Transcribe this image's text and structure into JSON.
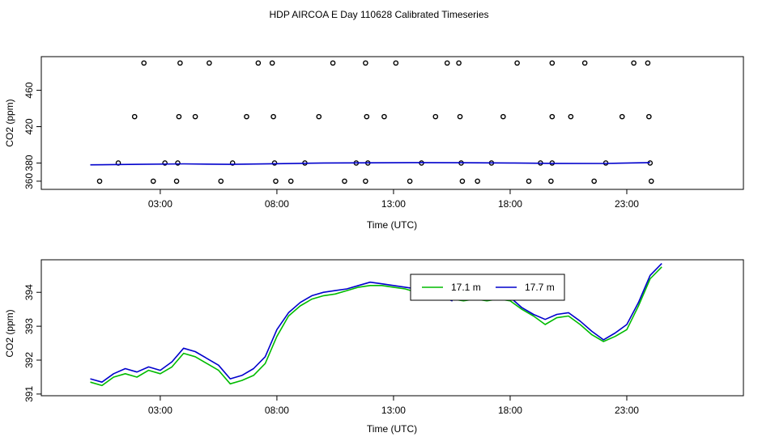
{
  "title": "HDP AIRCOA E  Day 110628  Calibrated Timeseries",
  "colors": {
    "green": "#00bb00",
    "blue": "#0000cc",
    "axis": "#000000"
  },
  "chart_data": [
    {
      "type": "scatter",
      "xlabel": "Time (UTC)",
      "ylabel": "CO2 (ppm)",
      "xlim": [
        -2.1,
        28.0
      ],
      "ylim": [
        351,
        497
      ],
      "x_ticks": [
        3,
        8,
        13,
        18,
        23
      ],
      "x_tick_labels": [
        "03:00",
        "08:00",
        "13:00",
        "18:00",
        "23:00"
      ],
      "y_ticks": [
        360,
        380,
        420,
        460
      ],
      "y_tick_labels": [
        "360",
        "380",
        "420",
        "460"
      ],
      "series": [
        {
          "style": "markers",
          "color": "#000000",
          "points": [
            [
              0.4,
              360
            ],
            [
              1.2,
              380
            ],
            [
              1.9,
              431
            ],
            [
              2.3,
              490
            ],
            [
              2.7,
              360
            ],
            [
              3.2,
              380
            ],
            [
              3.75,
              380
            ],
            [
              3.8,
              431
            ],
            [
              3.85,
              490
            ],
            [
              3.7,
              360
            ],
            [
              4.5,
              431
            ],
            [
              5.1,
              490
            ],
            [
              5.6,
              360
            ],
            [
              6.1,
              380
            ],
            [
              6.7,
              431
            ],
            [
              7.2,
              490
            ],
            [
              7.8,
              490
            ],
            [
              7.85,
              431
            ],
            [
              7.9,
              380
            ],
            [
              7.95,
              360
            ],
            [
              8.6,
              360
            ],
            [
              9.2,
              380
            ],
            [
              9.8,
              431
            ],
            [
              10.4,
              490
            ],
            [
              10.9,
              360
            ],
            [
              11.4,
              380
            ],
            [
              11.8,
              490
            ],
            [
              11.85,
              431
            ],
            [
              11.9,
              380
            ],
            [
              11.8,
              360
            ],
            [
              12.6,
              431
            ],
            [
              13.1,
              490
            ],
            [
              13.7,
              360
            ],
            [
              14.2,
              380
            ],
            [
              14.8,
              431
            ],
            [
              15.3,
              490
            ],
            [
              15.8,
              490
            ],
            [
              15.85,
              431
            ],
            [
              15.9,
              380
            ],
            [
              15.95,
              360
            ],
            [
              16.6,
              360
            ],
            [
              17.2,
              380
            ],
            [
              17.7,
              431
            ],
            [
              18.3,
              490
            ],
            [
              18.8,
              360
            ],
            [
              19.3,
              380
            ],
            [
              19.8,
              490
            ],
            [
              19.8,
              431
            ],
            [
              19.8,
              380
            ],
            [
              19.75,
              360
            ],
            [
              20.6,
              431
            ],
            [
              21.2,
              490
            ],
            [
              21.6,
              360
            ],
            [
              22.1,
              380
            ],
            [
              22.8,
              431
            ],
            [
              23.3,
              490
            ],
            [
              23.9,
              490
            ],
            [
              23.95,
              431
            ],
            [
              24.0,
              380
            ],
            [
              24.05,
              360
            ]
          ]
        },
        {
          "style": "line",
          "color": "#0000cc",
          "points": [
            [
              0,
              378
            ],
            [
              2,
              378.5
            ],
            [
              4,
              379
            ],
            [
              6,
              378.5
            ],
            [
              8,
              379.2
            ],
            [
              10,
              380
            ],
            [
              12,
              380.2
            ],
            [
              14,
              380.5
            ],
            [
              16,
              380.3
            ],
            [
              18,
              380
            ],
            [
              20,
              379.6
            ],
            [
              22,
              379.5
            ],
            [
              24,
              380.5
            ]
          ]
        }
      ]
    },
    {
      "type": "line",
      "xlabel": "Time (UTC)",
      "ylabel": "CO2 (ppm)",
      "xlim": [
        -2.1,
        28.0
      ],
      "ylim": [
        390.95,
        394.96
      ],
      "x_ticks": [
        3,
        8,
        13,
        18,
        23
      ],
      "x_tick_labels": [
        "03:00",
        "08:00",
        "13:00",
        "18:00",
        "23:00"
      ],
      "y_ticks": [
        391,
        392,
        393,
        394
      ],
      "y_tick_labels": [
        "391",
        "392",
        "393",
        "394"
      ],
      "legend": {
        "position": "top-center",
        "entries": [
          "17.1 m",
          "17.7 m"
        ]
      },
      "series": [
        {
          "name": "17.1 m",
          "color": "#00bb00",
          "points": [
            [
              0,
              391.35
            ],
            [
              0.5,
              391.25
            ],
            [
              1,
              391.5
            ],
            [
              1.5,
              391.6
            ],
            [
              2,
              391.5
            ],
            [
              2.5,
              391.7
            ],
            [
              3,
              391.6
            ],
            [
              3.5,
              391.8
            ],
            [
              4,
              392.2
            ],
            [
              4.5,
              392.1
            ],
            [
              5,
              391.9
            ],
            [
              5.5,
              391.7
            ],
            [
              6,
              391.3
            ],
            [
              6.5,
              391.4
            ],
            [
              7,
              391.55
            ],
            [
              7.5,
              391.9
            ],
            [
              8,
              392.7
            ],
            [
              8.5,
              393.3
            ],
            [
              9,
              393.6
            ],
            [
              9.5,
              393.8
            ],
            [
              10,
              393.9
            ],
            [
              10.5,
              393.95
            ],
            [
              11,
              394.05
            ],
            [
              11.5,
              394.15
            ],
            [
              12,
              394.2
            ],
            [
              12.5,
              394.2
            ],
            [
              13,
              394.15
            ],
            [
              13.5,
              394.1
            ],
            [
              14,
              394.0
            ],
            [
              14.5,
              393.95
            ],
            [
              15,
              393.85
            ],
            [
              15.5,
              393.8
            ],
            [
              16,
              393.75
            ],
            [
              16.5,
              393.8
            ],
            [
              17,
              393.75
            ],
            [
              17.5,
              393.8
            ],
            [
              18,
              393.75
            ],
            [
              18.5,
              393.5
            ],
            [
              19,
              393.3
            ],
            [
              19.5,
              393.05
            ],
            [
              20,
              393.25
            ],
            [
              20.5,
              393.3
            ],
            [
              21,
              393.05
            ],
            [
              21.5,
              392.75
            ],
            [
              22,
              392.55
            ],
            [
              22.5,
              392.7
            ],
            [
              23,
              392.9
            ],
            [
              23.5,
              393.6
            ],
            [
              24,
              394.4
            ],
            [
              24.5,
              394.75
            ]
          ]
        },
        {
          "name": "17.7 m",
          "color": "#0000cc",
          "points": [
            [
              0,
              391.45
            ],
            [
              0.5,
              391.35
            ],
            [
              1,
              391.6
            ],
            [
              1.5,
              391.75
            ],
            [
              2,
              391.65
            ],
            [
              2.5,
              391.8
            ],
            [
              3,
              391.7
            ],
            [
              3.5,
              391.95
            ],
            [
              4,
              392.35
            ],
            [
              4.5,
              392.25
            ],
            [
              5,
              392.05
            ],
            [
              5.5,
              391.85
            ],
            [
              6,
              391.45
            ],
            [
              6.5,
              391.55
            ],
            [
              7,
              391.75
            ],
            [
              7.5,
              392.1
            ],
            [
              8,
              392.9
            ],
            [
              8.5,
              393.4
            ],
            [
              9,
              393.7
            ],
            [
              9.5,
              393.9
            ],
            [
              10,
              394.0
            ],
            [
              10.5,
              394.05
            ],
            [
              11,
              394.1
            ],
            [
              11.5,
              394.2
            ],
            [
              12,
              394.3
            ],
            [
              12.5,
              394.25
            ],
            [
              13,
              394.2
            ],
            [
              13.5,
              394.15
            ],
            [
              14,
              394.1
            ],
            [
              14.5,
              394.0
            ],
            [
              15,
              393.9
            ],
            [
              15.5,
              393.75
            ],
            [
              16,
              394.35
            ],
            [
              16.5,
              393.9
            ],
            [
              17,
              393.8
            ],
            [
              17.5,
              393.9
            ],
            [
              18,
              393.85
            ],
            [
              18.5,
              393.55
            ],
            [
              19,
              393.35
            ],
            [
              19.5,
              393.2
            ],
            [
              20,
              393.35
            ],
            [
              20.5,
              393.4
            ],
            [
              21,
              393.15
            ],
            [
              21.5,
              392.85
            ],
            [
              22,
              392.6
            ],
            [
              22.5,
              392.8
            ],
            [
              23,
              393.05
            ],
            [
              23.5,
              393.7
            ],
            [
              24,
              394.5
            ],
            [
              24.5,
              394.85
            ]
          ]
        }
      ]
    }
  ]
}
